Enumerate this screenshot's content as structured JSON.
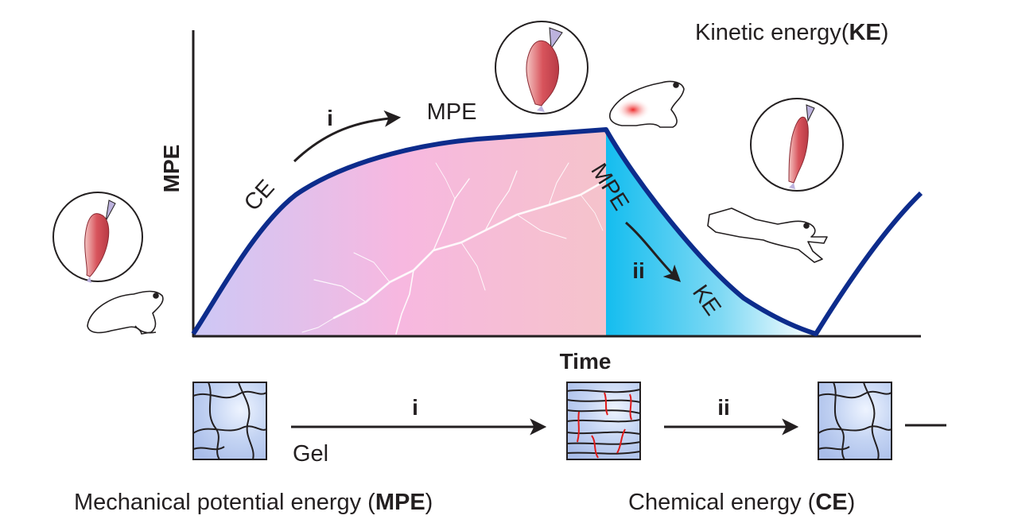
{
  "title_ke": {
    "prefix": "Kinetic energy(",
    "abbr": "KE",
    "suffix": ")"
  },
  "axes": {
    "y_label": "MPE",
    "x_label": "Time"
  },
  "curve_labels": {
    "ce": "CE",
    "step_i": "i",
    "mpe_top": "MPE",
    "mpe_descent": "MPE",
    "step_ii": "ii",
    "ke": "KE"
  },
  "bottom": {
    "step_i": "i",
    "step_ii": "ii",
    "gel": "Gel",
    "mpe_legend": {
      "prefix": "Mechanical potential energy (",
      "abbr": "MPE",
      "suffix": ")"
    },
    "ce_legend": {
      "prefix": "Chemical energy (",
      "abbr": "CE",
      "suffix": ")"
    }
  },
  "colors": {
    "curve": "#0d2c8c",
    "axis": "#231f20",
    "fill_left": "#c9c3f4",
    "fill_mid": "#f7b7de",
    "fill_right": "#f4c1ca",
    "ke_fill": "#1cc0ee",
    "muscle": "#d9575e",
    "tendon": "#b9b0dc",
    "gel_fill": "#b8c9ee",
    "stretch_bond": "#e01b1b",
    "frog_spot": "#ee3a3a"
  },
  "icons": {
    "muscle": "muscle-icon",
    "frog": "frog-icon",
    "gel": "gel-network-icon",
    "lightning": "lightning-icon"
  }
}
